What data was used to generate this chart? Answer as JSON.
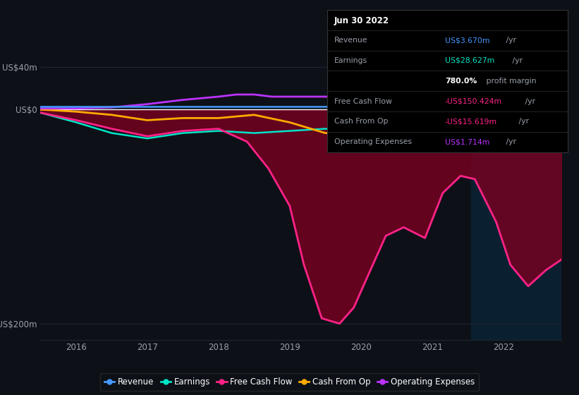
{
  "bg_color": "#0d1117",
  "text_color": "#9aa0aa",
  "grid_color": "#1e2535",
  "ylim": [
    -215,
    58
  ],
  "xlim": [
    2015.5,
    2022.82
  ],
  "yticks_val": [
    -200,
    0,
    40
  ],
  "ytick_labels": [
    "-US$200m",
    "US$0",
    "US$40m"
  ],
  "xtick_years": [
    2016,
    2017,
    2018,
    2019,
    2020,
    2021,
    2022
  ],
  "highlight_x_start": 2021.55,
  "revenue_x": [
    2015.5,
    2016.0,
    2016.5,
    2017.0,
    2017.5,
    2018.0,
    2018.5,
    2019.0,
    2019.5,
    2020.0,
    2020.5,
    2021.0,
    2021.5,
    2022.0,
    2022.4,
    2022.75
  ],
  "revenue_y": [
    2.5,
    2.5,
    2.5,
    2.5,
    2.5,
    2.5,
    2.5,
    2.5,
    2.5,
    2.5,
    2.5,
    2.5,
    2.5,
    2.5,
    25,
    44
  ],
  "revenue_color": "#4499ff",
  "earnings_x": [
    2015.5,
    2016.0,
    2016.5,
    2017.0,
    2017.5,
    2018.0,
    2018.5,
    2019.0,
    2019.5,
    2020.0,
    2020.5,
    2021.0,
    2021.25,
    2021.5,
    2022.0,
    2022.5,
    2022.75
  ],
  "earnings_y": [
    -3,
    -12,
    -22,
    -27,
    -22,
    -20,
    -22,
    -20,
    -18,
    -20,
    -22,
    -25,
    -28,
    -30,
    -28,
    -27,
    -27
  ],
  "earnings_color": "#00e5c8",
  "fcf_x": [
    2015.5,
    2016.0,
    2016.5,
    2017.0,
    2017.5,
    2018.0,
    2018.4,
    2018.7,
    2019.0,
    2019.2,
    2019.45,
    2019.7,
    2019.9,
    2020.1,
    2020.35,
    2020.6,
    2020.9,
    2021.15,
    2021.4,
    2021.6,
    2021.9,
    2022.1,
    2022.35,
    2022.6,
    2022.82
  ],
  "fcf_y": [
    -3,
    -10,
    -18,
    -25,
    -20,
    -18,
    -30,
    -55,
    -90,
    -145,
    -195,
    -200,
    -185,
    -155,
    -118,
    -110,
    -120,
    -78,
    -62,
    -65,
    -105,
    -145,
    -165,
    -150,
    -140
  ],
  "fcf_color": "#ff2288",
  "cashfromop_x": [
    2015.5,
    2016.0,
    2016.5,
    2017.0,
    2017.5,
    2018.0,
    2018.5,
    2019.0,
    2019.5,
    2020.0,
    2020.25,
    2020.5,
    2020.75,
    2021.0,
    2021.25,
    2021.5,
    2022.0,
    2022.5,
    2022.75
  ],
  "cashfromop_y": [
    0,
    -2,
    -5,
    -10,
    -8,
    -8,
    -5,
    -12,
    -22,
    -22,
    -28,
    -22,
    -18,
    -18,
    -16,
    -15,
    -18,
    -18,
    -15
  ],
  "cashfromop_color": "#ffaa00",
  "opex_x": [
    2015.5,
    2016.0,
    2016.5,
    2017.0,
    2017.5,
    2018.0,
    2018.25,
    2018.5,
    2018.75,
    2019.0,
    2019.5,
    2020.0,
    2020.5,
    2021.0,
    2021.5,
    2022.0,
    2022.4,
    2022.75
  ],
  "opex_y": [
    1,
    1,
    2,
    5,
    9,
    12,
    14,
    14,
    12,
    12,
    12,
    12,
    10,
    10,
    9,
    7,
    4,
    2
  ],
  "opex_color": "#bb33ff",
  "fill_color": "#7a0020",
  "fill_alpha": 0.8,
  "highlight_color": "#0a2030",
  "info_title": "Jun 30 2022",
  "info_rows": [
    {
      "label": "Revenue",
      "value": "US$3.670m",
      "unit": " /yr",
      "vc": "#4499ff",
      "bold": false
    },
    {
      "label": "Earnings",
      "value": "US$28.627m",
      "unit": " /yr",
      "vc": "#00e5c8",
      "bold": false
    },
    {
      "label": "",
      "value": "780.0%",
      "unit": " profit margin",
      "vc": "#ffffff",
      "bold": true
    },
    {
      "label": "Free Cash Flow",
      "value": "-US$150.424m",
      "unit": " /yr",
      "vc": "#ff2288",
      "bold": false
    },
    {
      "label": "Cash From Op",
      "value": "-US$15.619m",
      "unit": " /yr",
      "vc": "#ff2288",
      "bold": false
    },
    {
      "label": "Operating Expenses",
      "value": "US$1.714m",
      "unit": " /yr",
      "vc": "#bb33ff",
      "bold": false
    }
  ],
  "legend_items": [
    {
      "label": "Revenue",
      "color": "#4499ff"
    },
    {
      "label": "Earnings",
      "color": "#00e5c8"
    },
    {
      "label": "Free Cash Flow",
      "color": "#ff2288"
    },
    {
      "label": "Cash From Op",
      "color": "#ffaa00"
    },
    {
      "label": "Operating Expenses",
      "color": "#bb33ff"
    }
  ]
}
